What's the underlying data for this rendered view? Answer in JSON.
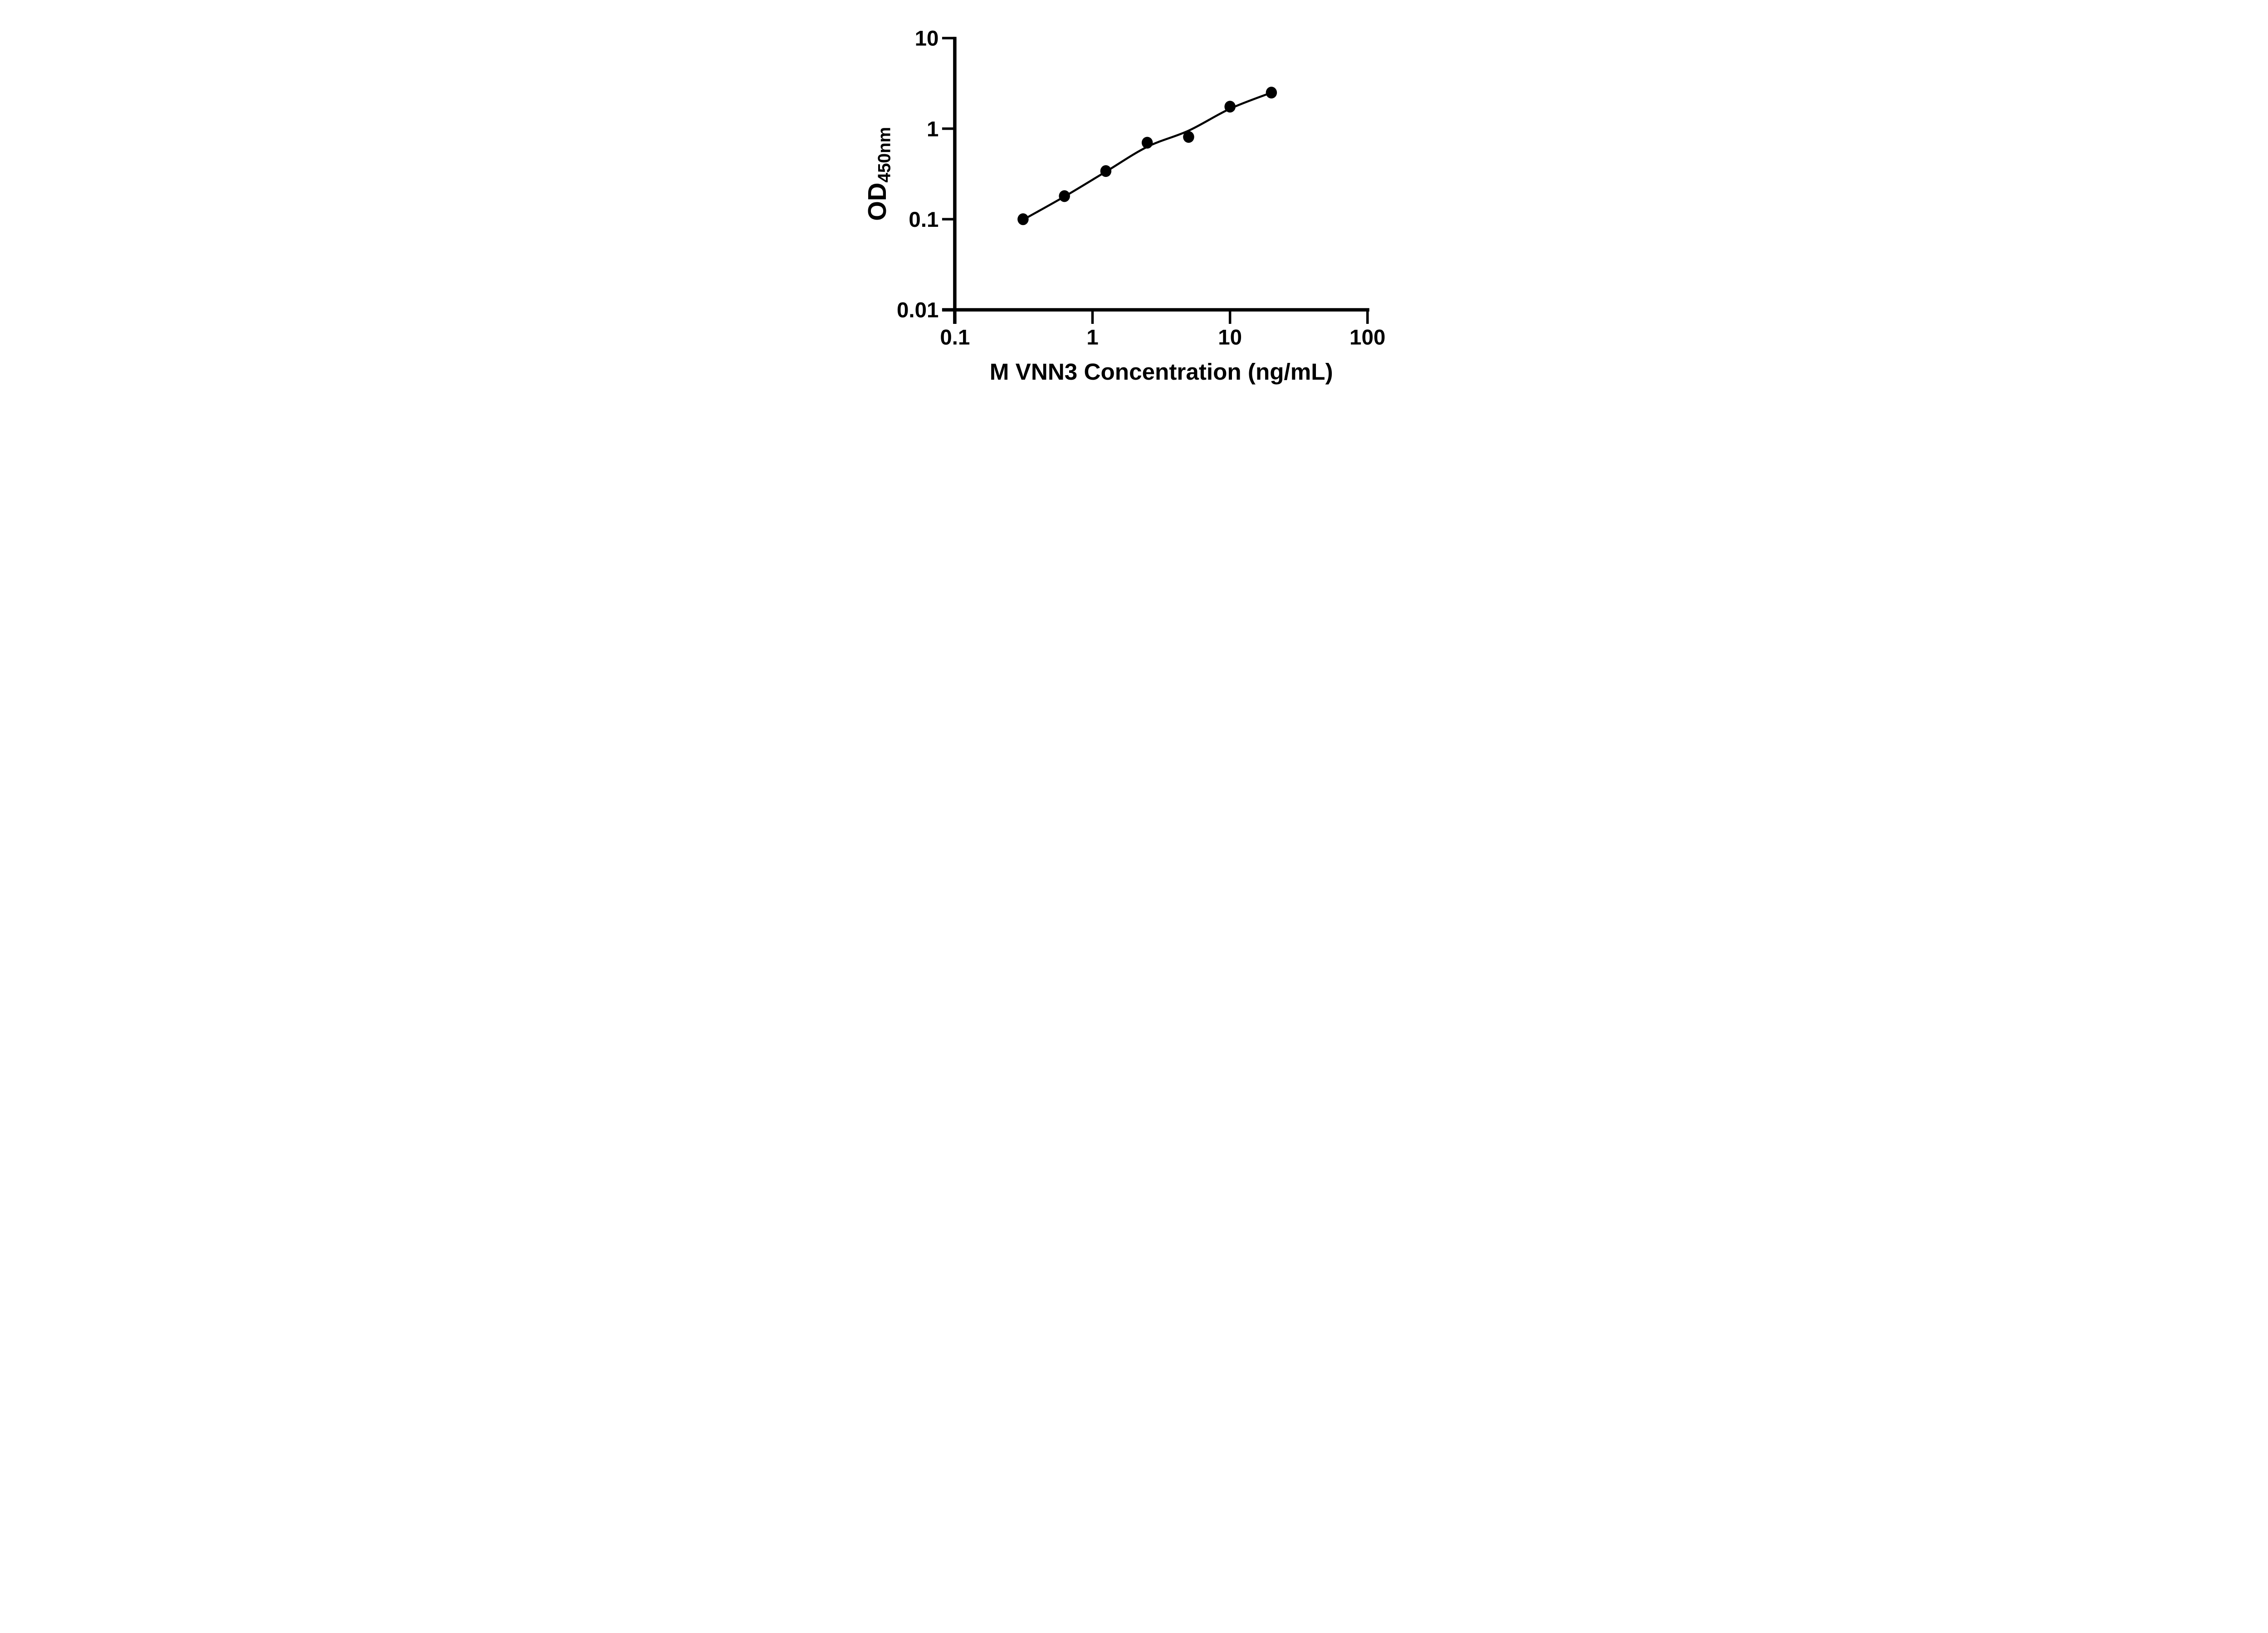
{
  "figure": {
    "background_color": "#ffffff",
    "ink_color": "#000000"
  },
  "chart_data": {
    "type": "scatter",
    "title": "",
    "xlabel": "M VNN3 Concentration (ng/mL)",
    "ylabel_main": "OD",
    "ylabel_subscript": "450nm",
    "x_scale": "log10",
    "y_scale": "log10",
    "xlim": [
      0.1,
      100
    ],
    "ylim": [
      0.01,
      10
    ],
    "x_ticks": [
      "0.1",
      "1",
      "10",
      "100"
    ],
    "y_ticks": [
      "0.01",
      "0.1",
      "1",
      "10"
    ],
    "grid": false,
    "legend_position": "none",
    "series": [
      {
        "name": "standard curve data points",
        "marker": "filled-circle",
        "color": "#000000",
        "x": [
          0.3125,
          0.625,
          1.25,
          2.5,
          5,
          10,
          20
        ],
        "y": [
          0.1,
          0.18,
          0.34,
          0.7,
          0.81,
          1.75,
          2.5
        ]
      }
    ],
    "fit_curve": {
      "name": "fitted standard curve",
      "color": "#000000",
      "x": [
        0.31,
        0.625,
        1.25,
        2.5,
        5,
        10,
        20
      ],
      "y": [
        0.098,
        0.178,
        0.335,
        0.63,
        0.95,
        1.66,
        2.5
      ]
    }
  }
}
